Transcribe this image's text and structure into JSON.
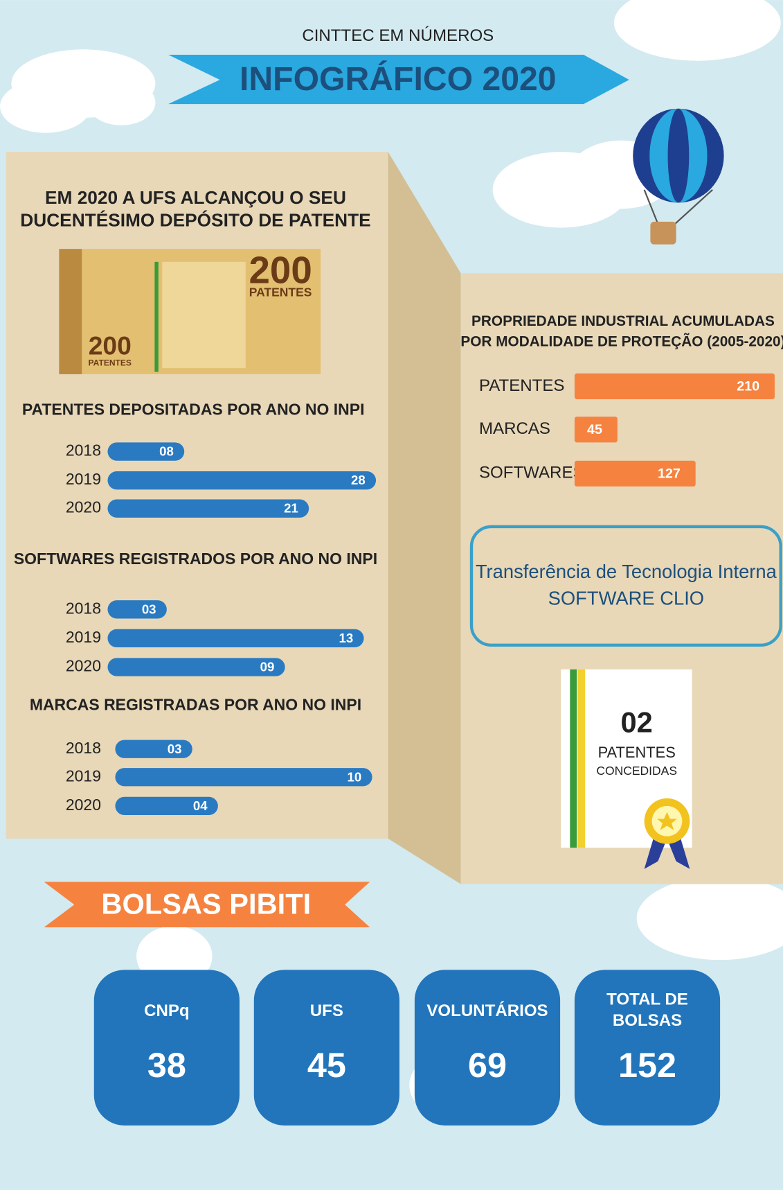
{
  "header": {
    "kicker": "CINTTEC EM NÚMEROS",
    "title": "INFOGRÁFICO 2020"
  },
  "milestone": {
    "title": [
      "EM 2020 A UFS ALCANÇOU O SEU",
      "DUCENTÉSIMO DEPÓSITO DE PATENTE"
    ],
    "image": {
      "big": "200",
      "big_label": "PATENTES",
      "small": "200",
      "small_label": "PATENTES"
    }
  },
  "chart_data": [
    {
      "type": "bar",
      "title": "PATENTES DEPOSITADAS POR ANO NO INPI",
      "categories": [
        "2018",
        "2019",
        "2020"
      ],
      "values": [
        8,
        28,
        21
      ],
      "value_labels": [
        "08",
        "28",
        "21"
      ],
      "color": "#2a7ac2"
    },
    {
      "type": "bar",
      "title": "SOFTWARES REGISTRADOS POR ANO NO INPI",
      "categories": [
        "2018",
        "2019",
        "2020"
      ],
      "values": [
        3,
        13,
        9
      ],
      "value_labels": [
        "03",
        "13",
        "09"
      ],
      "color": "#2a7ac2"
    },
    {
      "type": "bar",
      "title": "MARCAS REGISTRADAS POR ANO NO INPI",
      "categories": [
        "2018",
        "2019",
        "2020"
      ],
      "values": [
        3,
        10,
        4
      ],
      "value_labels": [
        "03",
        "10",
        "04"
      ],
      "color": "#2a7ac2"
    },
    {
      "type": "bar",
      "title": [
        "PROPRIEDADE INDUSTRIAL ACUMULADAS",
        "POR MODALIDADE DE PROTEÇÃO (2005-2020)"
      ],
      "categories": [
        "PATENTES",
        "MARCAS",
        "SOFTWARES"
      ],
      "values": [
        210,
        45,
        127
      ],
      "color": "#f5833f"
    }
  ],
  "transfer": {
    "lines": [
      "Transferência de Tecnologia Interna",
      "SOFTWARE CLIO"
    ]
  },
  "certificate": {
    "number": "02",
    "line1": "PATENTES",
    "line2": "CONCEDIDAS"
  },
  "bolsas": {
    "title": "BOLSAS PIBITI",
    "cards": [
      {
        "label": [
          "CNPq"
        ],
        "value": 38
      },
      {
        "label": [
          "UFS"
        ],
        "value": 45
      },
      {
        "label": [
          "VOLUNTÁRIOS"
        ],
        "value": 69
      },
      {
        "label": [
          "TOTAL DE",
          "BOLSAS"
        ],
        "value": 152
      }
    ]
  }
}
